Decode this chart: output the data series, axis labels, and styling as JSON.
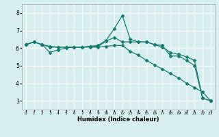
{
  "title": "",
  "xlabel": "Humidex (Indice chaleur)",
  "ylabel": "",
  "background_color": "#d6eef0",
  "grid_color": "#ffffff",
  "line_color": "#1a7a6e",
  "xlim": [
    -0.5,
    23.5
  ],
  "ylim": [
    2.5,
    8.5
  ],
  "xticks": [
    0,
    1,
    2,
    3,
    4,
    5,
    6,
    7,
    8,
    9,
    10,
    11,
    12,
    13,
    14,
    15,
    16,
    17,
    18,
    19,
    20,
    21,
    22,
    23
  ],
  "yticks": [
    3,
    4,
    5,
    6,
    7,
    8
  ],
  "series": [
    {
      "x": [
        0,
        1,
        2,
        3,
        4,
        5,
        6,
        7,
        8,
        9,
        10,
        11,
        12,
        13,
        14,
        15,
        16,
        17,
        18,
        19,
        20,
        21,
        22,
        23
      ],
      "y": [
        6.2,
        6.35,
        6.2,
        6.05,
        6.05,
        6.05,
        6.05,
        6.05,
        6.1,
        6.15,
        6.45,
        7.1,
        7.85,
        6.5,
        6.35,
        6.35,
        6.2,
        6.15,
        5.55,
        5.55,
        5.3,
        5.0,
        3.15,
        3.0
      ],
      "marker": "D",
      "markersize": 2.5
    },
    {
      "x": [
        0,
        1,
        2,
        3,
        4,
        5,
        6,
        7,
        8,
        9,
        10,
        11,
        12,
        13,
        14,
        15,
        16,
        17,
        18,
        19,
        20,
        21,
        22,
        23
      ],
      "y": [
        6.2,
        6.35,
        6.2,
        6.1,
        6.05,
        6.05,
        6.05,
        6.05,
        6.1,
        6.1,
        6.4,
        6.6,
        6.35,
        6.35,
        6.35,
        6.35,
        6.2,
        6.05,
        5.75,
        5.65,
        5.5,
        5.3,
        3.15,
        3.0
      ],
      "marker": "D",
      "markersize": 2.5
    },
    {
      "x": [
        0,
        1,
        2,
        3,
        4,
        5,
        6,
        7,
        8,
        9,
        10,
        11,
        12,
        13,
        14,
        15,
        16,
        17,
        18,
        19,
        20,
        21,
        22,
        23
      ],
      "y": [
        6.2,
        6.35,
        6.2,
        5.75,
        5.9,
        6.0,
        6.05,
        6.05,
        6.05,
        6.05,
        6.1,
        6.15,
        6.15,
        5.8,
        5.6,
        5.3,
        5.05,
        4.8,
        4.55,
        4.3,
        4.0,
        3.75,
        3.5,
        3.0
      ],
      "marker": "D",
      "markersize": 2.5
    }
  ]
}
